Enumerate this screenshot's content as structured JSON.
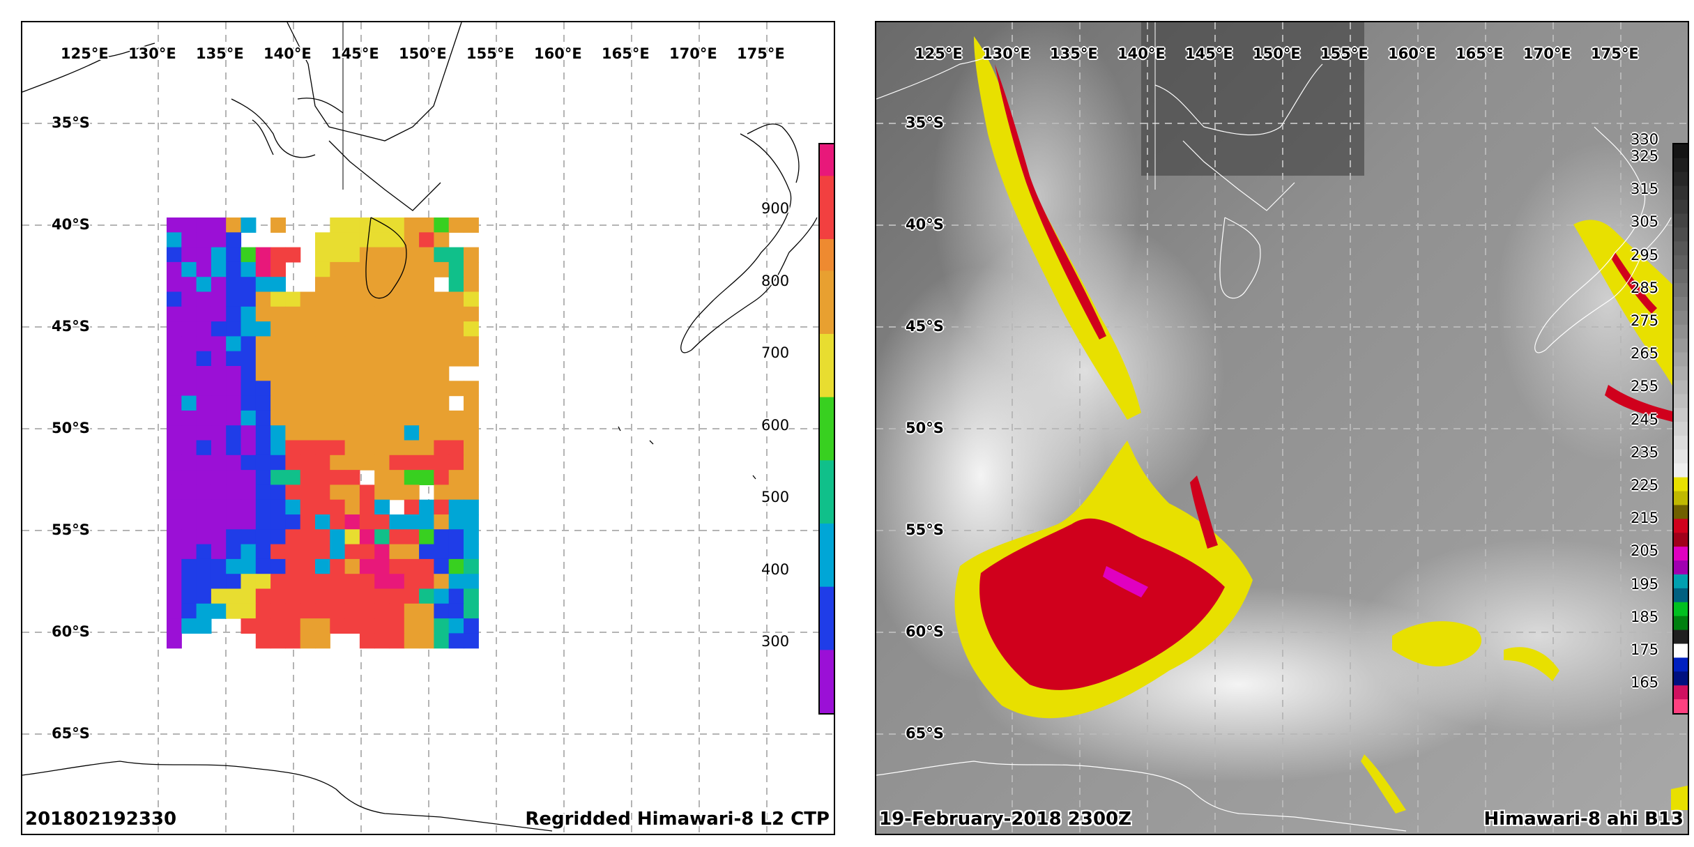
{
  "left_panel": {
    "lon_labels": [
      "125°E",
      "130°E",
      "135°E",
      "140°E",
      "145°E",
      "150°E",
      "155°E",
      "160°E",
      "165°E",
      "170°E",
      "175°E"
    ],
    "lat_labels": [
      "35°S",
      "40°S",
      "45°S",
      "50°S",
      "55°S",
      "60°S",
      "65°S"
    ],
    "colorbar_ticks": [
      "900",
      "800",
      "700",
      "600",
      "500",
      "400",
      "300"
    ],
    "caption_left": "201802192330",
    "caption_right": "Regridded Himawari-8 L2 CTP"
  },
  "right_panel": {
    "lon_labels": [
      "125°E",
      "130°E",
      "135°E",
      "140°E",
      "145°E",
      "150°E",
      "155°E",
      "160°E",
      "165°E",
      "170°E",
      "175°E"
    ],
    "lat_labels": [
      "35°S",
      "40°S",
      "45°S",
      "50°S",
      "55°S",
      "60°S",
      "65°S"
    ],
    "colorbar_ticks": [
      "330",
      "325",
      "315",
      "305",
      "295",
      "285",
      "275",
      "265",
      "255",
      "245",
      "235",
      "225",
      "215",
      "205",
      "195",
      "185",
      "175",
      "165"
    ],
    "caption_left": "19-February-2018 2300Z",
    "caption_right": "Himawari-8 ahi B13"
  },
  "colors": {
    "purple": "#9b10d6",
    "blue": "#1f3de8",
    "cyan": "#00a6d6",
    "teal": "#10c08a",
    "green": "#38d020",
    "yellow": "#e8dd30",
    "orange": "#e8a030",
    "dark_orange": "#ee8a30",
    "red": "#f24040",
    "magenta": "#e8187a",
    "ir_red": "#d0001c",
    "ir_yellow": "#e8e000"
  }
}
